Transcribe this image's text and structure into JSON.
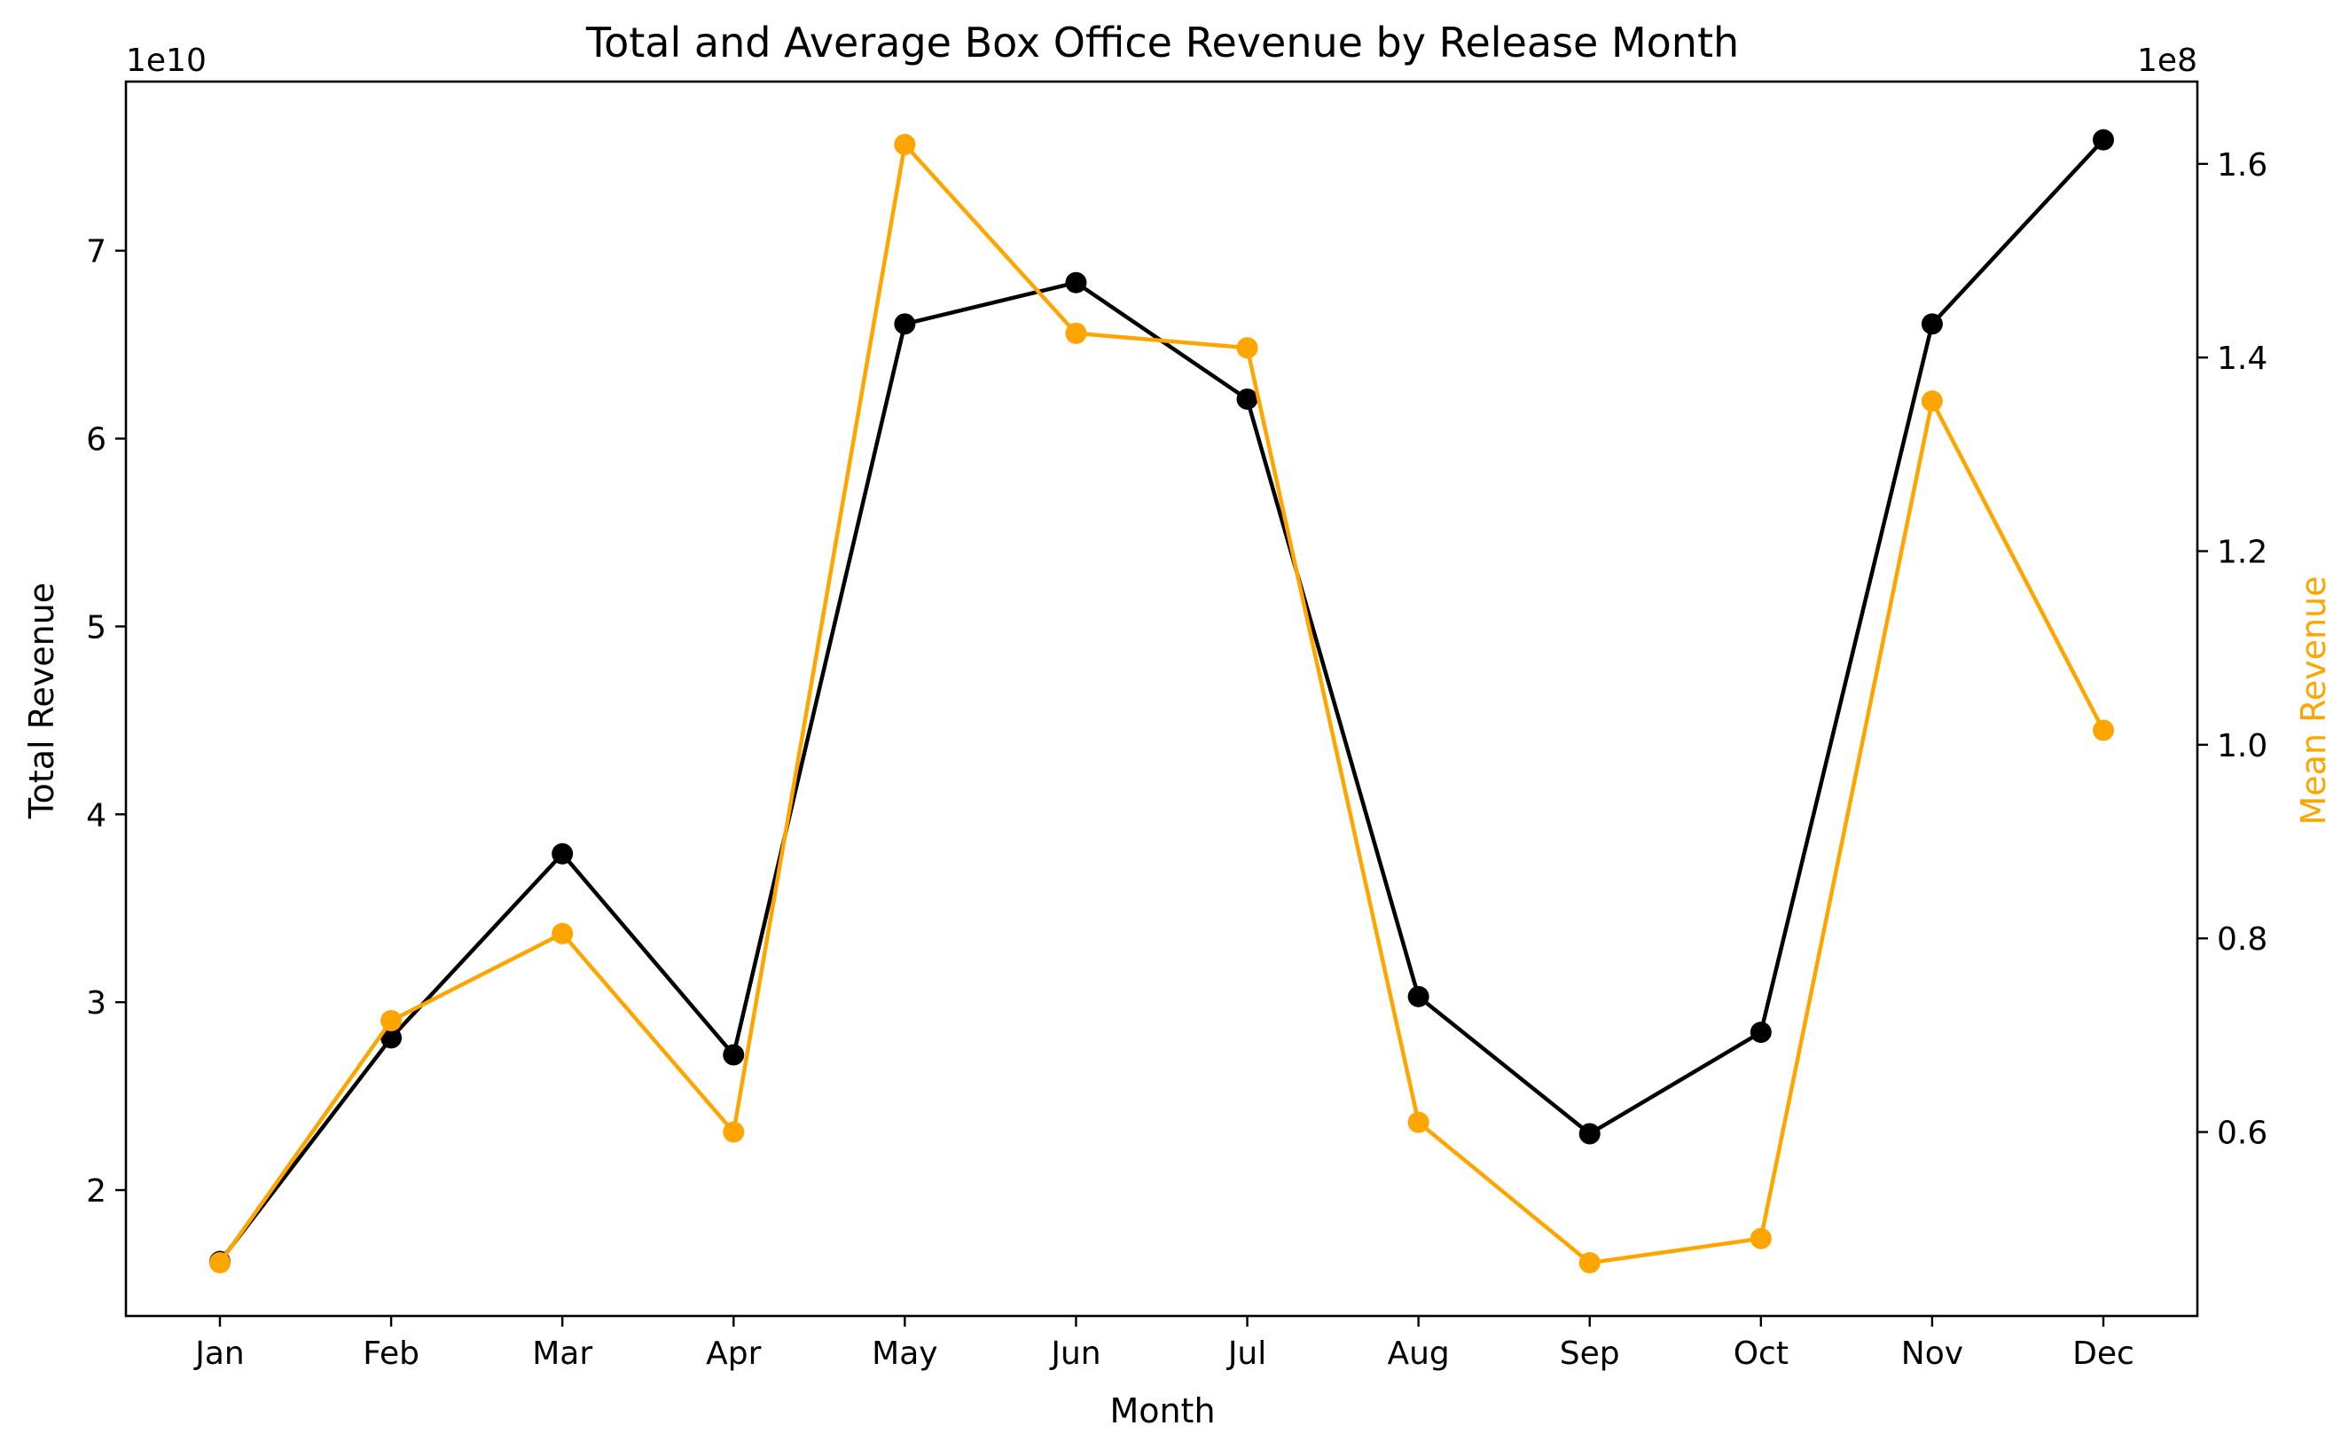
{
  "chart_data": {
    "type": "line",
    "title": "Total and Average Box Office Revenue by Release Month",
    "xlabel": "Month",
    "ylabel_left": "Total Revenue",
    "ylabel_right": "Mean Revenue",
    "left_offset_label": "1e10",
    "right_offset_label": "1e8",
    "categories": [
      "Jan",
      "Feb",
      "Mar",
      "Apr",
      "May",
      "Jun",
      "Jul",
      "Aug",
      "Sep",
      "Oct",
      "Nov",
      "Dec"
    ],
    "left_axis": {
      "ylim": [
        1.33,
        7.9
      ],
      "ticks": [
        2,
        3,
        4,
        5,
        6,
        7
      ],
      "tick_labels": [
        "2",
        "3",
        "4",
        "5",
        "6",
        "7"
      ]
    },
    "right_axis": {
      "ylim": [
        0.41,
        1.685
      ],
      "ticks": [
        0.6,
        0.8,
        1.0,
        1.2,
        1.4,
        1.6
      ],
      "tick_labels": [
        "0.6",
        "0.8",
        "1.0",
        "1.2",
        "1.4",
        "1.6"
      ]
    },
    "series": [
      {
        "name": "Total Revenue",
        "axis": "left",
        "color": "#000000",
        "values": [
          1.62,
          2.81,
          3.79,
          2.72,
          6.61,
          6.83,
          6.21,
          3.03,
          2.3,
          2.84,
          6.61,
          7.59
        ]
      },
      {
        "name": "Mean Revenue",
        "axis": "right",
        "color": "#FFA500",
        "values": [
          0.465,
          0.715,
          0.805,
          0.6,
          1.62,
          1.425,
          1.41,
          0.61,
          0.465,
          0.49,
          1.355,
          1.015
        ]
      }
    ],
    "grid": false
  }
}
